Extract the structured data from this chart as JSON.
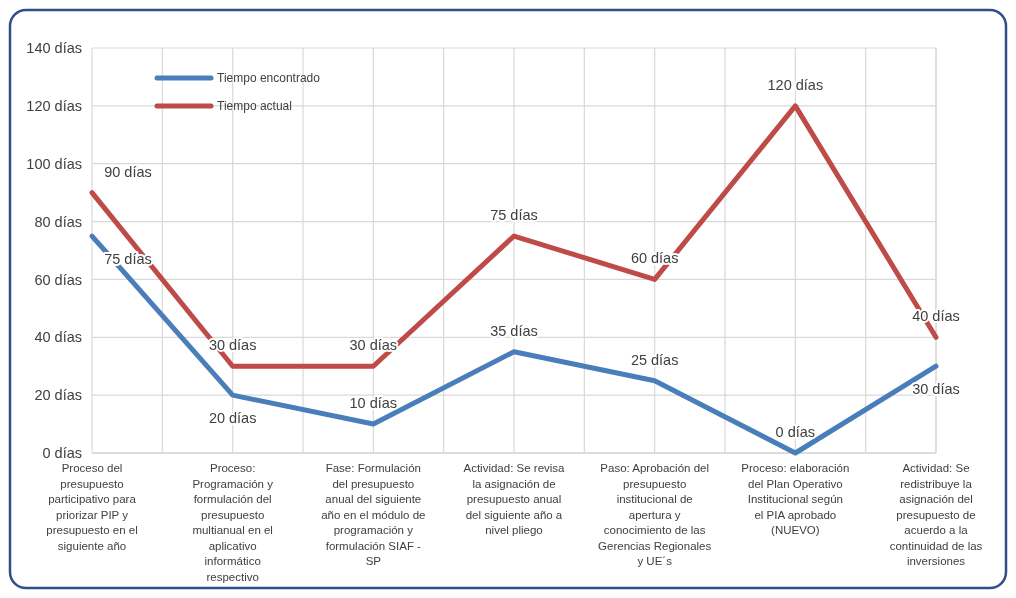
{
  "chart_data": {
    "type": "line",
    "categories": [
      "Proceso del presupuesto participativo para priorizar PIP y presupuesto en el siguiente año",
      "Proceso: Programación y formulación del presupuesto multianual en el aplicativo informático respectivo",
      "Fase: Formulación del presupuesto anual del siguiente año en el módulo de programación y formulación SIAF - SP",
      "Actividad: Se revisa la asignación de presupuesto anual del siguiente año a nivel pliego",
      "Paso: Aprobación del presupuesto institucional de apertura y conocimiento de las Gerencias Regionales y UE´s",
      "Proceso: elaboración del Plan Operativo Institucional según el PIA aprobado (NUEVO)",
      "Actividad: Se redistribuye la asignación del presupuesto de acuerdo a la continuidad de las inversiones"
    ],
    "series": [
      {
        "name": "Tiempo encontrado",
        "color": "#4a7ebb",
        "values": [
          75,
          20,
          10,
          35,
          25,
          0,
          30
        ],
        "value_labels": [
          "75 días",
          "20 días",
          "10 días",
          "35 días",
          "25 días",
          "0 días",
          "30 días"
        ]
      },
      {
        "name": "Tiempo actual",
        "color": "#be4b48",
        "values": [
          90,
          30,
          30,
          75,
          60,
          120,
          40
        ],
        "value_labels": [
          "90 días",
          "30 días",
          "30 días",
          "75 días",
          "60 días",
          "120 días",
          "40 días"
        ]
      }
    ],
    "ylim": [
      0,
      140
    ],
    "yticks": [
      {
        "value": 0,
        "label": "0 días"
      },
      {
        "value": 20,
        "label": "20 días"
      },
      {
        "value": 40,
        "label": "40 días"
      },
      {
        "value": 60,
        "label": "60 días"
      },
      {
        "value": 80,
        "label": "80 días"
      },
      {
        "value": 100,
        "label": "100 días"
      },
      {
        "value": 120,
        "label": "120 días"
      },
      {
        "value": 140,
        "label": "140 días"
      }
    ],
    "grid": true,
    "legend": "top left",
    "marker": "none",
    "line_style": "solid"
  }
}
